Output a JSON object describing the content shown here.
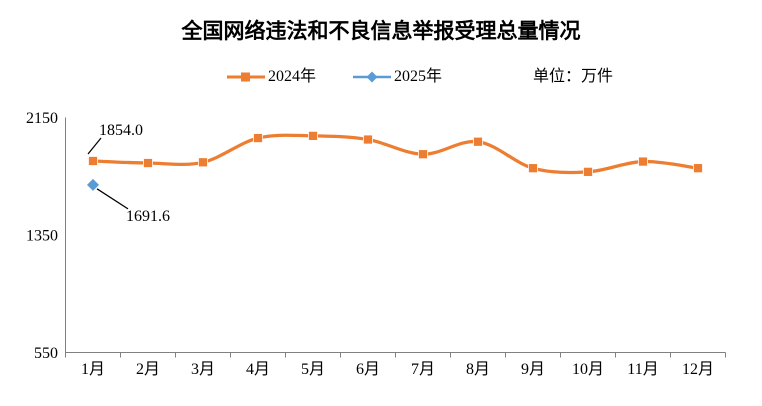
{
  "title": "全国网络违法和不良信息举报受理总量情况",
  "unit_label": "单位：万件",
  "legend": [
    {
      "label": "2024年",
      "color": "#ED7D31",
      "marker": "square"
    },
    {
      "label": "2025年",
      "color": "#5B9BD5",
      "marker": "diamond"
    }
  ],
  "colors": {
    "series_2024": "#ED7D31",
    "series_2025": "#5B9BD5",
    "axis": "#808080",
    "text": "#000000",
    "background": "#FFFFFF"
  },
  "chart_data": {
    "type": "line",
    "title": "全国网络违法和不良信息举报受理总量情况",
    "unit": "万件",
    "categories": [
      "1月",
      "2月",
      "3月",
      "4月",
      "5月",
      "6月",
      "7月",
      "8月",
      "9月",
      "10月",
      "11月",
      "12月"
    ],
    "series": [
      {
        "name": "2024年",
        "color": "#ED7D31",
        "marker": "square",
        "values": [
          1854.0,
          1840,
          1845,
          2010,
          2025,
          2000,
          1900,
          1985,
          1805,
          1780,
          1850,
          1805
        ]
      },
      {
        "name": "2025年",
        "color": "#5B9BD5",
        "marker": "diamond",
        "values": [
          1691.6,
          null,
          null,
          null,
          null,
          null,
          null,
          null,
          null,
          null,
          null,
          null
        ]
      }
    ],
    "ylim": [
      550,
      2150
    ],
    "yticks": [
      550,
      1350,
      2150
    ],
    "grid": false,
    "legend_position": "top",
    "annotations": [
      {
        "series": "2024年",
        "category": "1月",
        "text": "1854.0",
        "placement": "above"
      },
      {
        "series": "2025年",
        "category": "1月",
        "text": "1691.6",
        "placement": "below"
      }
    ]
  }
}
